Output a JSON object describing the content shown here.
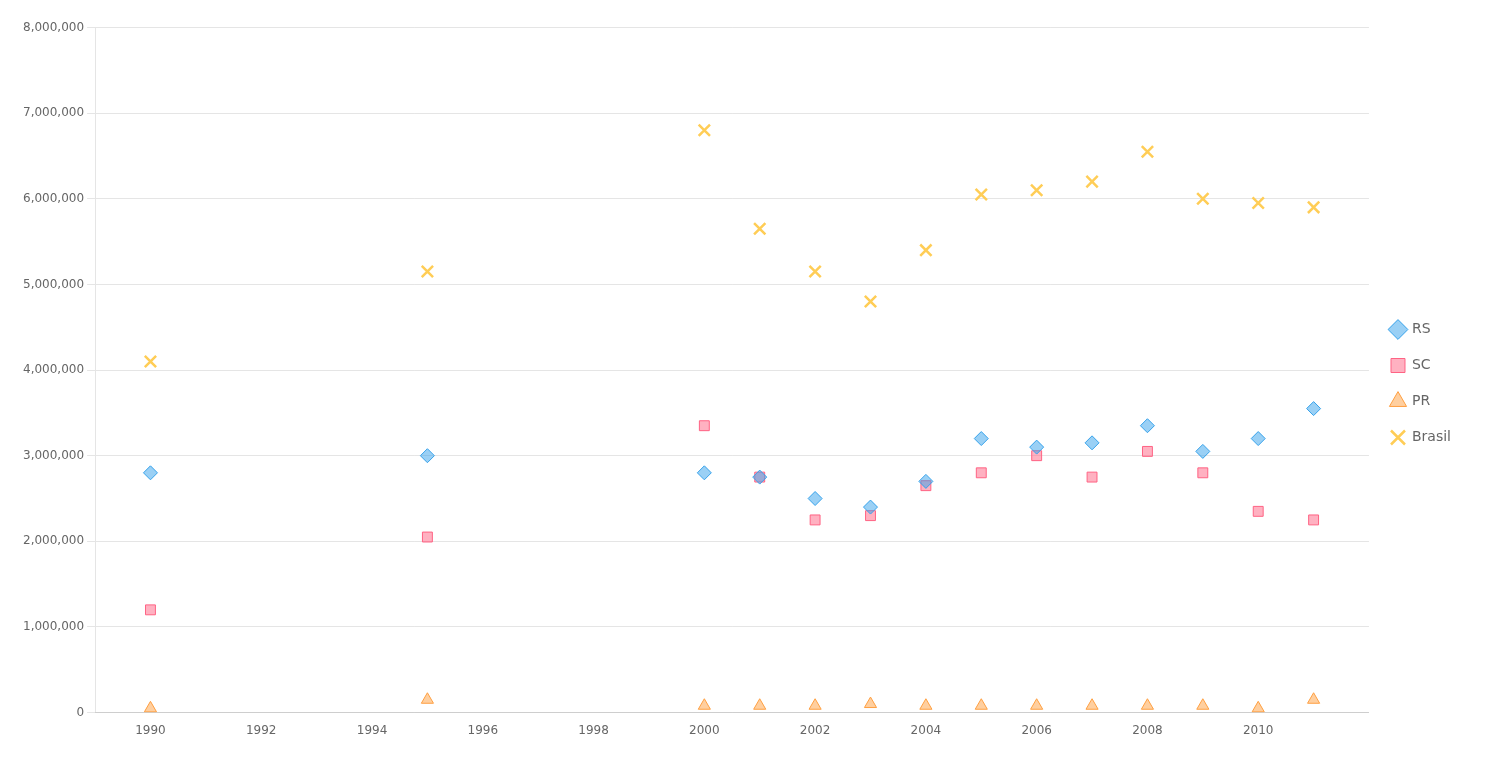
{
  "chart_data": {
    "type": "scatter",
    "x": [
      1990,
      1995,
      2000,
      2001,
      2002,
      2003,
      2004,
      2005,
      2006,
      2007,
      2008,
      2009,
      2010,
      2011
    ],
    "series": [
      {
        "name": "RS",
        "marker": "diamond",
        "values": [
          2800000,
          3000000,
          2800000,
          2750000,
          2500000,
          2400000,
          2700000,
          3200000,
          3100000,
          3150000,
          3350000,
          3050000,
          3200000,
          3550000
        ]
      },
      {
        "name": "SC",
        "marker": "square",
        "values": [
          1200000,
          2050000,
          3350000,
          2750000,
          2250000,
          2300000,
          2650000,
          2800000,
          3000000,
          2750000,
          3050000,
          2800000,
          2350000,
          2250000
        ]
      },
      {
        "name": "PR",
        "marker": "triangle",
        "values": [
          50000,
          150000,
          80000,
          80000,
          80000,
          100000,
          80000,
          80000,
          80000,
          80000,
          80000,
          80000,
          50000,
          150000
        ]
      },
      {
        "name": "Brasil",
        "marker": "x",
        "values": [
          4100000,
          5150000,
          6800000,
          5650000,
          5150000,
          4800000,
          5400000,
          6050000,
          6100000,
          6200000,
          6550000,
          6000000,
          5950000,
          5900000
        ]
      }
    ],
    "xlim": [
      1989,
      2012
    ],
    "xticks": [
      1990,
      1992,
      1994,
      1996,
      1998,
      2000,
      2002,
      2004,
      2006,
      2008,
      2010
    ],
    "ylim": [
      0,
      8000000
    ],
    "yticks": [
      0,
      {
        "value": 1000000,
        "label": "1,000,000"
      },
      {
        "value": 2000000,
        "label": "2,000,000"
      },
      {
        "value": 3000000,
        "label": "3,000,000"
      },
      {
        "value": 4000000,
        "label": "4,000,000"
      },
      {
        "value": 5000000,
        "label": "5,000,000"
      },
      {
        "value": 6000000,
        "label": "6,000,000"
      },
      {
        "value": 7000000,
        "label": "7,000,000"
      },
      {
        "value": 8000000,
        "label": "8,000,000"
      }
    ],
    "grid": "y",
    "legend": "right"
  }
}
